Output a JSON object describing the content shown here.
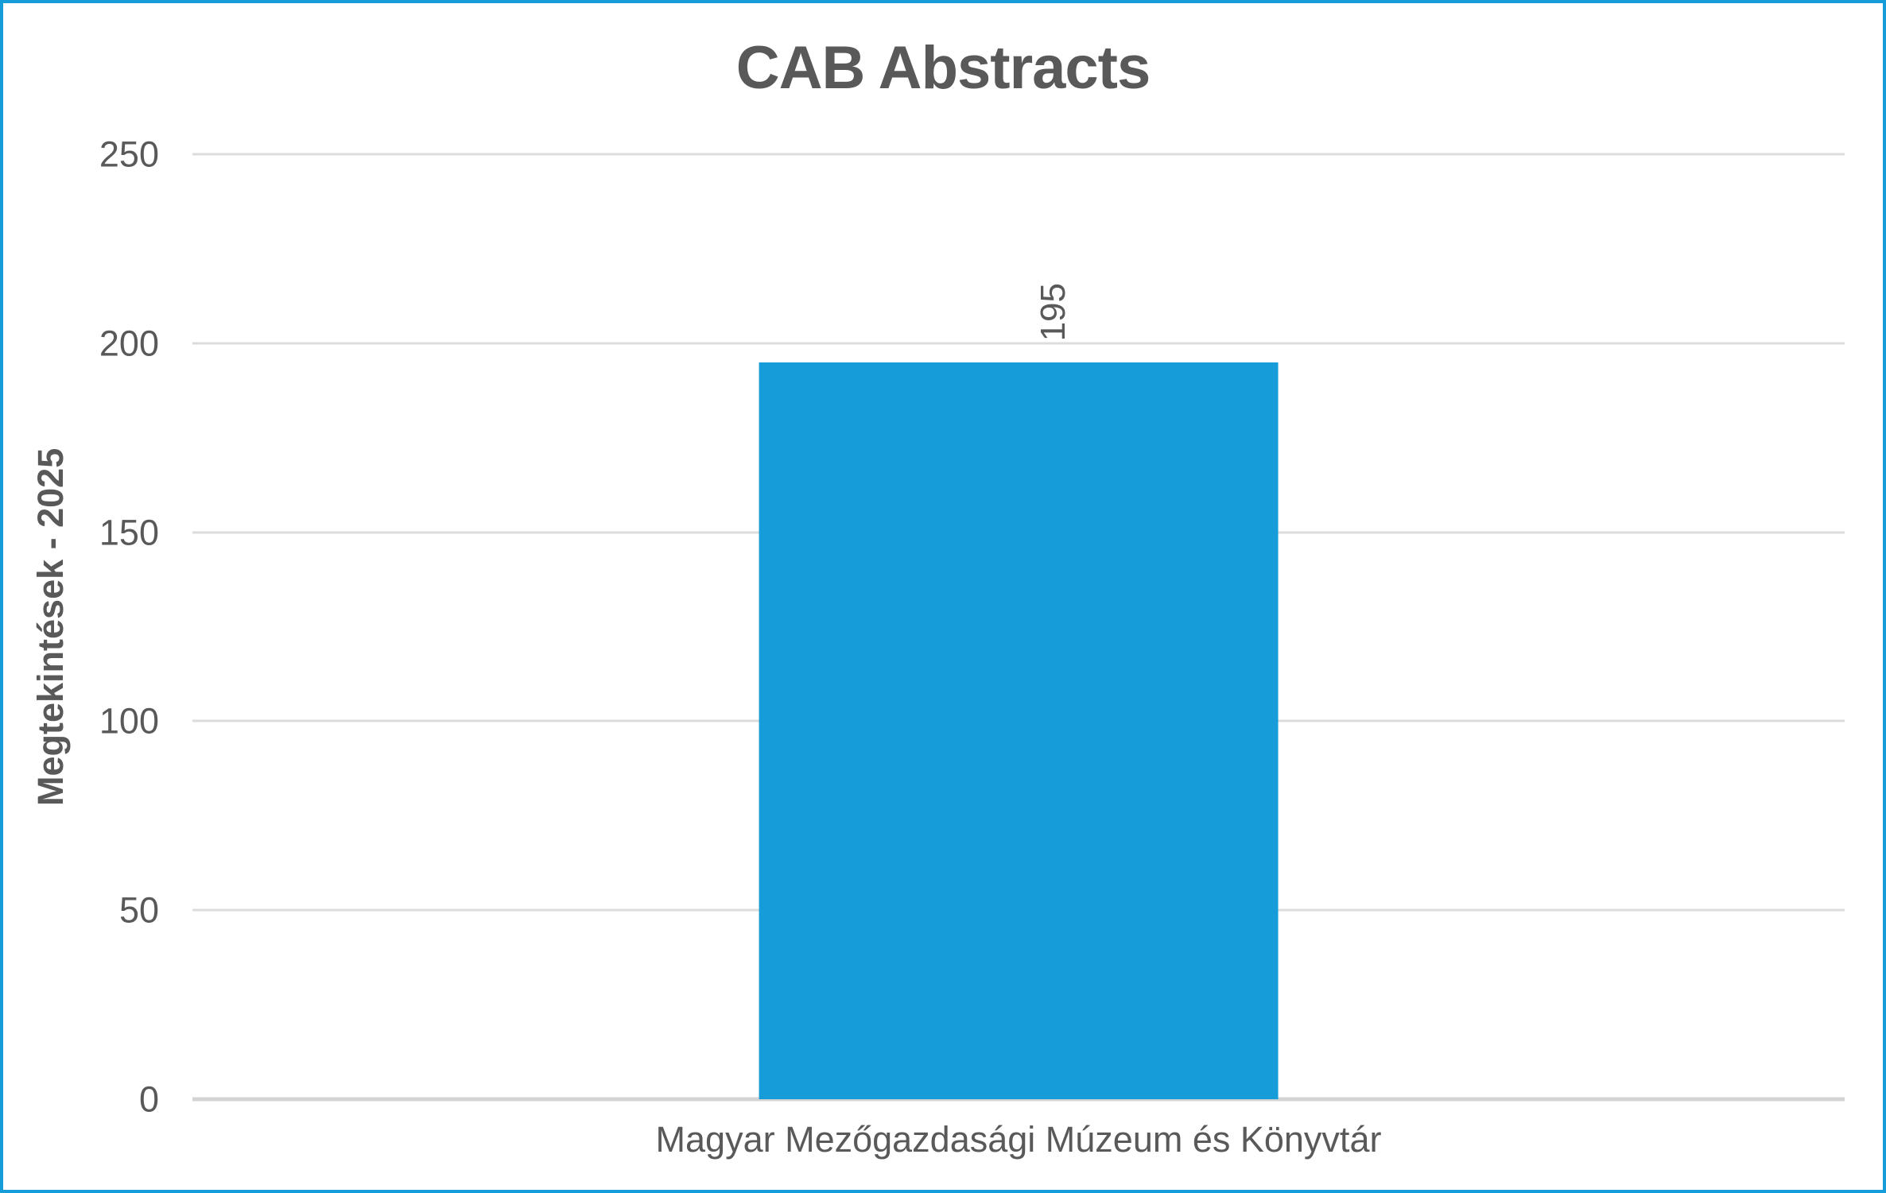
{
  "chart_data": {
    "type": "bar",
    "title": "CAB Abstracts",
    "ylabel": "Megtekintések - 2025",
    "xlabel": "",
    "categories": [
      "Magyar Mezőgazdasági Múzeum és Könyvtár"
    ],
    "values": [
      195
    ],
    "value_labels": [
      "195"
    ],
    "yticks": [
      0,
      50,
      100,
      150,
      200,
      250
    ],
    "ylim": [
      0,
      250
    ],
    "grid": "horizontal-gridlines-on",
    "legend": "none",
    "value_label_orientation": "rotated-90-reads-bottom-to-top",
    "colors": {
      "bar": "#169DD9",
      "frame_border": "#169DD9",
      "text": "#595959",
      "gridline": "#DCDCDC",
      "axis_line": "#D3D3D3"
    }
  }
}
